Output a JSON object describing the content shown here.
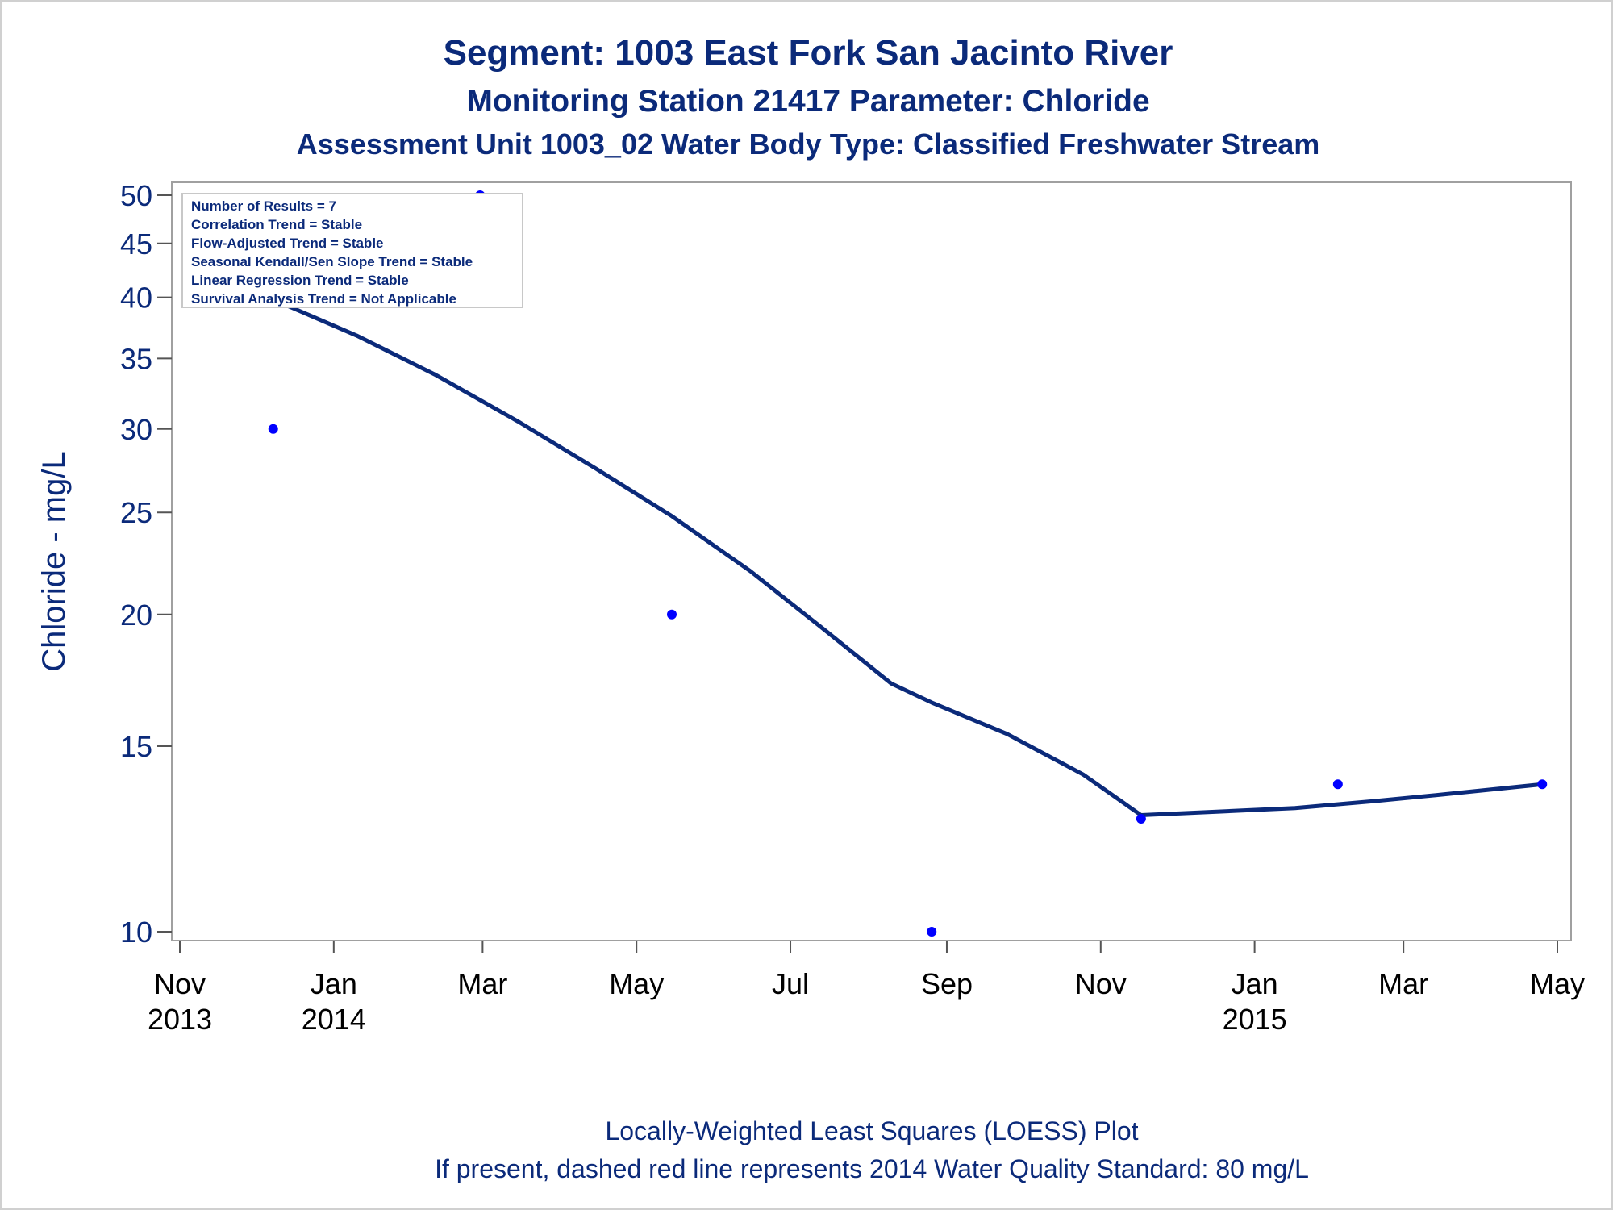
{
  "chart_data": {
    "type": "scatter",
    "title": "Segment: 1003  East Fork San Jacinto River",
    "subtitle": "Monitoring Station 21417 Parameter: Chloride",
    "subtitle2": "Assessment Unit 1003_02   Water Body Type: Classified Freshwater Stream",
    "ylabel": "Chloride - mg/L",
    "xlabel": "",
    "y_scale": "log",
    "ylim": [
      10,
      50
    ],
    "xlim": [
      "2013-11-01",
      "2015-05-01"
    ],
    "y_ticks": [
      10,
      15,
      20,
      25,
      30,
      35,
      40,
      45,
      50
    ],
    "x_ticks": [
      {
        "date": "2013-11-01",
        "month": "Nov",
        "year": "2013"
      },
      {
        "date": "2014-01-01",
        "month": "Jan",
        "year": "2014"
      },
      {
        "date": "2014-03-01",
        "month": "Mar",
        "year": ""
      },
      {
        "date": "2014-05-01",
        "month": "May",
        "year": ""
      },
      {
        "date": "2014-07-01",
        "month": "Jul",
        "year": ""
      },
      {
        "date": "2014-09-01",
        "month": "Sep",
        "year": ""
      },
      {
        "date": "2014-11-01",
        "month": "Nov",
        "year": ""
      },
      {
        "date": "2015-01-01",
        "month": "Jan",
        "year": "2015"
      },
      {
        "date": "2015-03-01",
        "month": "Mar",
        "year": ""
      },
      {
        "date": "2015-05-01",
        "month": "May",
        "year": ""
      }
    ],
    "points": [
      {
        "date": "2013-12-08",
        "value": 30
      },
      {
        "date": "2014-02-28",
        "value": 50
      },
      {
        "date": "2014-05-15",
        "value": 20
      },
      {
        "date": "2014-08-26",
        "value": 10
      },
      {
        "date": "2014-11-17",
        "value": 12.8
      },
      {
        "date": "2015-02-03",
        "value": 13.8
      },
      {
        "date": "2015-04-25",
        "value": 13.8
      }
    ],
    "loess_curve": [
      {
        "date": "2013-12-08",
        "value": 39.8
      },
      {
        "date": "2014-01-10",
        "value": 36.8
      },
      {
        "date": "2014-02-10",
        "value": 33.8
      },
      {
        "date": "2014-03-15",
        "value": 30.5
      },
      {
        "date": "2014-04-15",
        "value": 27.5
      },
      {
        "date": "2014-05-15",
        "value": 24.8
      },
      {
        "date": "2014-06-15",
        "value": 22.0
      },
      {
        "date": "2014-07-15",
        "value": 19.3
      },
      {
        "date": "2014-08-10",
        "value": 17.2
      },
      {
        "date": "2014-08-26",
        "value": 16.5
      },
      {
        "date": "2014-09-25",
        "value": 15.4
      },
      {
        "date": "2014-10-25",
        "value": 14.1
      },
      {
        "date": "2014-11-17",
        "value": 12.9
      },
      {
        "date": "2014-12-17",
        "value": 13.0
      },
      {
        "date": "2015-01-17",
        "value": 13.1
      },
      {
        "date": "2015-02-17",
        "value": 13.3
      },
      {
        "date": "2015-03-17",
        "value": 13.5
      },
      {
        "date": "2015-04-25",
        "value": 13.8
      }
    ],
    "grid": false,
    "colors": {
      "title": "#0b2a7a",
      "points": "#0000ff",
      "line": "#0b2a7a",
      "frame": "#a0a0a0"
    }
  },
  "stats_box": {
    "lines": [
      "Number of Results = 7",
      "Correlation Trend = Stable",
      "Flow-Adjusted Trend = Stable",
      "Seasonal Kendall/Sen Slope Trend = Stable",
      "Linear Regression Trend = Stable",
      "Survival Analysis Trend = Not Applicable"
    ]
  },
  "footnotes": {
    "line1": "Locally-Weighted Least Squares (LOESS) Plot",
    "line2": "If present, dashed red line represents 2014 Water Quality Standard: 80     mg/L"
  }
}
